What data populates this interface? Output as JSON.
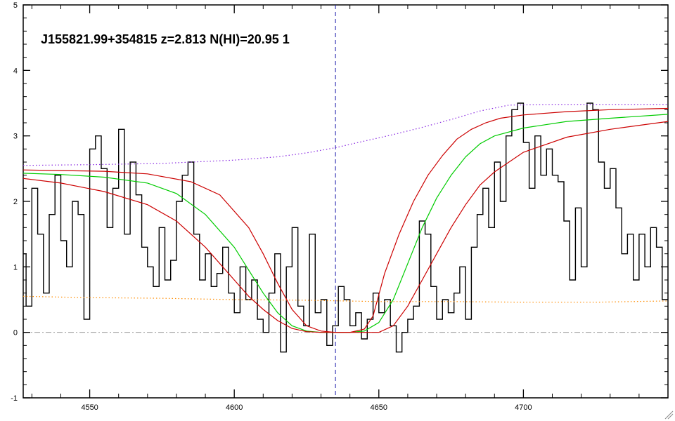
{
  "chart_data": {
    "type": "line",
    "title": "J155821.99+354815 z=2.813 N(HI)=20.95 1",
    "xlabel": "",
    "ylabel": "",
    "xlim": [
      4527,
      4750
    ],
    "ylim": [
      -1,
      5
    ],
    "x_ticks": [
      4550,
      4600,
      4650,
      4700
    ],
    "y_ticks": [
      -1,
      0,
      1,
      2,
      3,
      4,
      5
    ],
    "grid": false,
    "legend": "none",
    "marker_line_x": 4635,
    "zero_line_y": 0,
    "series": [
      {
        "kind": "flux-histogram",
        "color": "#000000",
        "x": [
          4527,
          4529,
          4531,
          4533,
          4535,
          4537,
          4539,
          4541,
          4543,
          4545,
          4547,
          4549,
          4551,
          4553,
          4555,
          4557,
          4559,
          4561,
          4563,
          4565,
          4567,
          4569,
          4571,
          4573,
          4575,
          4577,
          4579,
          4581,
          4583,
          4585,
          4587,
          4589,
          4591,
          4593,
          4595,
          4597,
          4599,
          4601,
          4603,
          4605,
          4607,
          4609,
          4611,
          4613,
          4615,
          4617,
          4619,
          4621,
          4623,
          4625,
          4627,
          4629,
          4631,
          4633,
          4635,
          4637,
          4639,
          4641,
          4643,
          4645,
          4647,
          4649,
          4651,
          4653,
          4655,
          4657,
          4659,
          4661,
          4663,
          4665,
          4667,
          4669,
          4671,
          4673,
          4675,
          4677,
          4679,
          4681,
          4683,
          4685,
          4687,
          4689,
          4691,
          4693,
          4695,
          4697,
          4699,
          4701,
          4703,
          4705,
          4707,
          4709,
          4711,
          4713,
          4715,
          4717,
          4719,
          4721,
          4723,
          4725,
          4727,
          4729,
          4731,
          4733,
          4735,
          4737,
          4739,
          4741,
          4743,
          4745,
          4747,
          4749
        ],
        "y": [
          1.2,
          0.4,
          2.2,
          1.5,
          0.6,
          1.8,
          2.4,
          1.4,
          1.0,
          2.0,
          1.8,
          0.2,
          2.8,
          3.0,
          2.5,
          1.6,
          2.2,
          3.1,
          1.5,
          2.6,
          2.1,
          1.3,
          1.0,
          0.7,
          1.6,
          0.8,
          1.1,
          2.0,
          2.4,
          2.6,
          1.5,
          0.8,
          1.2,
          0.7,
          0.9,
          1.3,
          0.6,
          0.3,
          1.0,
          0.5,
          0.8,
          0.2,
          0.0,
          0.6,
          1.2,
          -0.3,
          1.0,
          1.6,
          0.4,
          0.1,
          1.5,
          0.3,
          0.5,
          -0.2,
          0.1,
          0.7,
          0.5,
          0.1,
          0.3,
          -0.1,
          0.2,
          0.6,
          0.3,
          0.5,
          0.1,
          -0.3,
          0.0,
          0.2,
          0.4,
          1.7,
          1.5,
          0.7,
          0.2,
          0.5,
          0.3,
          0.6,
          1.0,
          0.2,
          1.3,
          1.8,
          2.2,
          1.6,
          2.6,
          2.0,
          3.0,
          3.4,
          3.5,
          2.9,
          2.2,
          3.0,
          2.4,
          2.8,
          2.4,
          2.3,
          1.7,
          0.8,
          1.9,
          1.0,
          3.5,
          3.4,
          2.6,
          2.2,
          2.5,
          1.9,
          1.2,
          1.5,
          0.8,
          1.5,
          1.0,
          1.6,
          1.3,
          0.5
        ]
      },
      {
        "kind": "continuum",
        "color": "#8a2be2",
        "style": "dotted",
        "x": [
          4527,
          4550,
          4575,
          4600,
          4615,
          4625,
          4635,
          4645,
          4655,
          4665,
          4675,
          4685,
          4695,
          4710,
          4730,
          4750
        ],
        "y": [
          2.55,
          2.56,
          2.58,
          2.63,
          2.68,
          2.74,
          2.82,
          2.92,
          3.02,
          3.13,
          3.25,
          3.38,
          3.47,
          3.48,
          3.48,
          3.48
        ]
      },
      {
        "kind": "error",
        "color": "#ff8c00",
        "style": "dotted",
        "x": [
          4527,
          4550,
          4575,
          4600,
          4625,
          4650,
          4675,
          4700,
          4725,
          4750
        ],
        "y": [
          0.55,
          0.53,
          0.52,
          0.5,
          0.49,
          0.47,
          0.47,
          0.46,
          0.46,
          0.48
        ]
      },
      {
        "kind": "model",
        "color": "#00cc00",
        "x": [
          4527,
          4540,
          4555,
          4570,
          4580,
          4590,
          4600,
          4605,
          4610,
          4615,
          4620,
          4625,
          4630,
          4635,
          4640,
          4645,
          4650,
          4655,
          4660,
          4665,
          4670,
          4675,
          4680,
          4685,
          4690,
          4700,
          4715,
          4730,
          4750
        ],
        "y": [
          2.43,
          2.41,
          2.37,
          2.28,
          2.12,
          1.8,
          1.3,
          0.95,
          0.6,
          0.3,
          0.1,
          0.02,
          0.0,
          0.0,
          0.0,
          0.02,
          0.15,
          0.5,
          1.05,
          1.6,
          2.05,
          2.4,
          2.68,
          2.88,
          3.0,
          3.12,
          3.22,
          3.27,
          3.33
        ]
      },
      {
        "kind": "model-upper",
        "color": "#cc0000",
        "x": [
          4527,
          4540,
          4555,
          4570,
          4585,
          4595,
          4605,
          4610,
          4615,
          4620,
          4625,
          4630,
          4635,
          4640,
          4645,
          4648,
          4652,
          4657,
          4662,
          4667,
          4672,
          4677,
          4682,
          4687,
          4692,
          4700,
          4715,
          4730,
          4750
        ],
        "y": [
          2.48,
          2.47,
          2.46,
          2.42,
          2.3,
          2.1,
          1.6,
          1.2,
          0.75,
          0.35,
          0.1,
          0.02,
          0.0,
          0.0,
          0.05,
          0.25,
          0.9,
          1.5,
          2.0,
          2.4,
          2.7,
          2.95,
          3.1,
          3.2,
          3.27,
          3.32,
          3.37,
          3.4,
          3.42
        ]
      },
      {
        "kind": "model-lower",
        "color": "#cc0000",
        "x": [
          4527,
          4540,
          4555,
          4570,
          4580,
          4590,
          4600,
          4605,
          4610,
          4615,
          4620,
          4625,
          4630,
          4640,
          4650,
          4655,
          4660,
          4665,
          4670,
          4675,
          4680,
          4685,
          4690,
          4700,
          4715,
          4730,
          4750
        ],
        "y": [
          2.35,
          2.28,
          2.15,
          1.95,
          1.7,
          1.3,
          0.8,
          0.55,
          0.35,
          0.18,
          0.06,
          0.01,
          0.0,
          0.0,
          0.0,
          0.1,
          0.4,
          0.8,
          1.2,
          1.6,
          1.95,
          2.25,
          2.45,
          2.75,
          2.98,
          3.1,
          3.22
        ]
      }
    ]
  }
}
